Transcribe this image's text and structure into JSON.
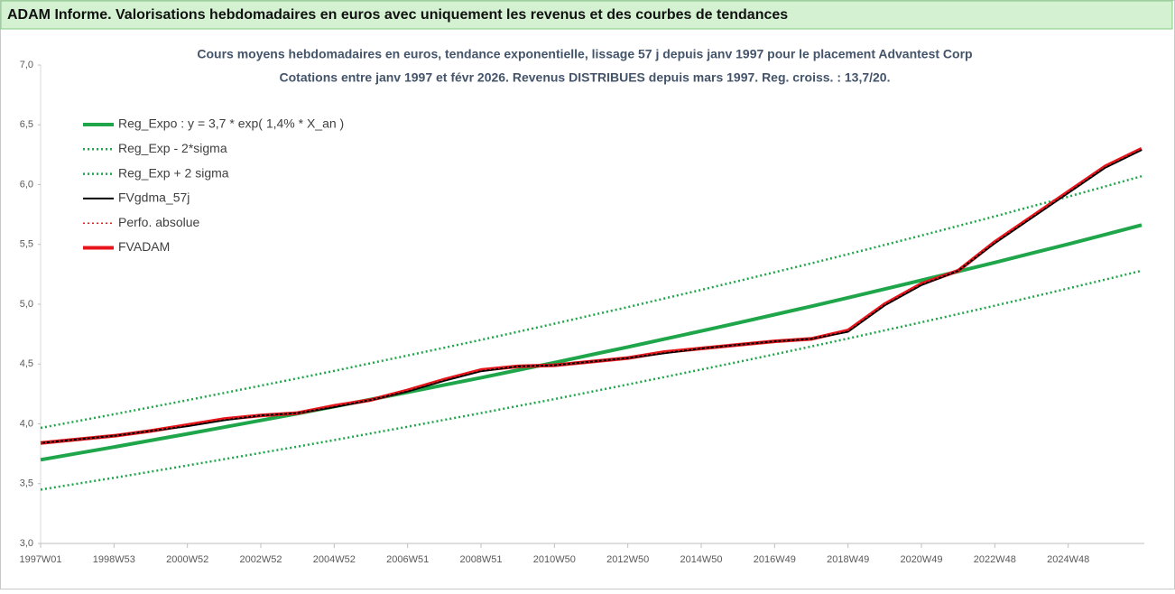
{
  "header": {
    "title": "ADAM Informe. Valorisations hebdomadaires en euros avec uniquement les revenus et des courbes de tendances"
  },
  "chart_data": {
    "type": "line",
    "title": "Cours moyens hebdomadaires en euros, tendance exponentielle, lissage 57 j depuis janv 1997  pour le placement Advantest Corp",
    "subtitle": "Cotations entre janv 1997 et févr 2026. Revenus DISTRIBUES depuis mars 1997. Reg. croiss. : 13,7/20.",
    "categories": [
      "1997W01",
      null,
      "1998W53",
      null,
      "2000W52",
      null,
      "2002W52",
      null,
      "2004W52",
      null,
      "2006W51",
      null,
      "2008W51",
      null,
      "2010W50",
      null,
      "2012W50",
      null,
      "2014W50",
      null,
      "2016W49",
      null,
      "2018W49",
      null,
      "2020W49",
      null,
      "2022W48",
      null,
      "2024W48",
      null,
      null
    ],
    "series": [
      {
        "name": "Reg_Expo : y = 3,7 * exp( 1,4% *  X_an )",
        "color": "#1fa64a",
        "line_style": "solid",
        "line_width": 4,
        "values": [
          3.7,
          3.753,
          3.806,
          3.861,
          3.916,
          3.972,
          4.029,
          4.086,
          4.144,
          4.204,
          4.264,
          4.325,
          4.386,
          4.449,
          4.512,
          4.577,
          4.642,
          4.709,
          4.776,
          4.844,
          4.913,
          4.983,
          5.054,
          5.127,
          5.2,
          5.274,
          5.349,
          5.426,
          5.503,
          5.582,
          5.662
        ]
      },
      {
        "name": "Reg_Exp - 2*sigma",
        "color": "#1fa64a",
        "line_style": "dotted",
        "line_width": 2.5,
        "values": [
          3.45,
          3.5,
          3.549,
          3.6,
          3.652,
          3.704,
          3.757,
          3.81,
          3.864,
          3.92,
          3.976,
          4.033,
          4.09,
          4.149,
          4.207,
          4.268,
          4.329,
          4.391,
          4.454,
          4.517,
          4.581,
          4.647,
          4.713,
          4.781,
          4.849,
          4.918,
          4.988,
          5.06,
          5.132,
          5.205,
          5.28
        ]
      },
      {
        "name": "Reg_Exp + 2 sigma",
        "color": "#1fa64a",
        "line_style": "dotted",
        "line_width": 2.5,
        "values": [
          3.966,
          4.023,
          4.08,
          4.139,
          4.198,
          4.258,
          4.319,
          4.38,
          4.442,
          4.507,
          4.571,
          4.636,
          4.702,
          4.769,
          4.837,
          4.907,
          4.976,
          5.048,
          5.12,
          5.193,
          5.267,
          5.342,
          5.418,
          5.496,
          5.574,
          5.654,
          5.734,
          5.817,
          5.899,
          5.984,
          6.07
        ]
      },
      {
        "name": "FVgdma_57j",
        "color": "#000000",
        "line_style": "solid",
        "line_width": 2,
        "values": [
          3.84,
          3.87,
          3.9,
          3.94,
          3.98,
          4.03,
          4.07,
          4.09,
          4.14,
          4.2,
          4.27,
          4.36,
          4.44,
          4.48,
          4.49,
          4.52,
          4.55,
          4.59,
          4.63,
          4.66,
          4.69,
          4.71,
          4.77,
          4.99,
          5.16,
          5.28,
          5.51,
          5.72,
          5.93,
          6.14,
          6.29
        ]
      },
      {
        "name": "Perfo. absolue",
        "color": "#e02020",
        "line_style": "dotted",
        "line_width": 1.5,
        "values": [
          3.84,
          3.87,
          3.9,
          3.94,
          3.99,
          4.04,
          4.07,
          4.09,
          4.15,
          4.2,
          4.28,
          4.37,
          4.45,
          4.48,
          4.49,
          4.52,
          4.55,
          4.6,
          4.63,
          4.66,
          4.69,
          4.71,
          4.78,
          5.0,
          5.17,
          5.28,
          5.52,
          5.73,
          5.94,
          6.15,
          6.3
        ]
      },
      {
        "name": "FVADAM",
        "color": "#e8141b",
        "line_style": "solid",
        "line_width": 4,
        "values": [
          3.84,
          3.87,
          3.9,
          3.94,
          3.99,
          4.04,
          4.07,
          4.09,
          4.15,
          4.2,
          4.28,
          4.37,
          4.45,
          4.48,
          4.49,
          4.52,
          4.55,
          4.6,
          4.63,
          4.66,
          4.69,
          4.71,
          4.78,
          5.0,
          5.17,
          5.28,
          5.52,
          5.73,
          5.94,
          6.15,
          6.3
        ]
      }
    ],
    "draw_order": [
      0,
      1,
      2,
      5,
      3,
      4
    ],
    "ylim": [
      3,
      7
    ],
    "yticks": [
      {
        "value": 3,
        "label": "3,0"
      },
      {
        "value": 3.5,
        "label": "3,5"
      },
      {
        "value": 4,
        "label": "4,0"
      },
      {
        "value": 4.5,
        "label": "4,5"
      },
      {
        "value": 5,
        "label": "5,0"
      },
      {
        "value": 5.5,
        "label": "5,5"
      },
      {
        "value": 6,
        "label": "6,0"
      },
      {
        "value": 6.5,
        "label": "6,5"
      },
      {
        "value": 7,
        "label": "7,0"
      }
    ],
    "grid": false,
    "legend": "top-left"
  }
}
